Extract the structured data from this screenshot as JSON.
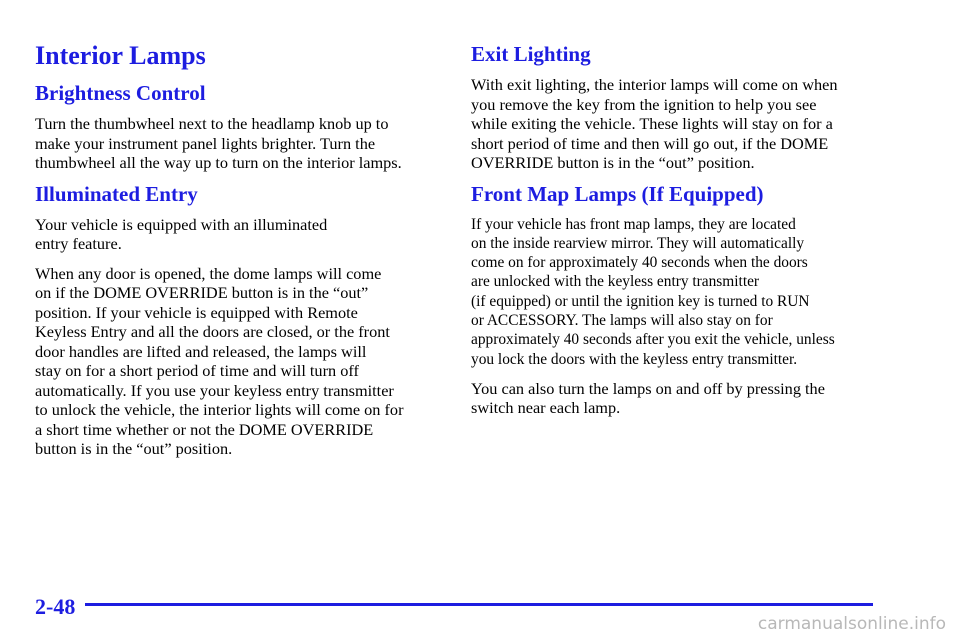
{
  "left": {
    "title": "Interior Lamps",
    "sections": [
      {
        "heading": "Brightness Control",
        "paragraphs": [
          [
            "Turn the thumbwheel next to the headlamp knob up to",
            "make your instrument panel lights brighter. Turn the",
            "thumbwheel all the way up to turn on the interior lamps."
          ]
        ]
      },
      {
        "heading": "Illuminated Entry",
        "paragraphs": [
          [
            "Your vehicle is equipped with an illuminated",
            "entry feature."
          ],
          [
            "When any door is opened, the dome lamps will come",
            "on if the DOME OVERRIDE button is in the “out”",
            "position. If your vehicle is equipped with Remote",
            "Keyless Entry and all the doors are closed, or the front",
            "door handles are lifted and released, the lamps will",
            "stay on for a short period of time and will turn off",
            "automatically. If you use your keyless entry transmitter",
            "to unlock the vehicle, the interior lights will come on for",
            "a short time whether or not the DOME OVERRIDE",
            "button is in the “out” position."
          ]
        ]
      }
    ]
  },
  "right": {
    "sections": [
      {
        "heading": "Exit Lighting",
        "paragraphs": [
          [
            "With exit lighting, the interior lamps will come on when",
            "you remove the key from the ignition to help you see",
            "while exiting the vehicle. These lights will stay on for a",
            "short period of time and then will go out, if the DOME",
            "OVERRIDE button is in the “out” position."
          ]
        ]
      },
      {
        "heading": "Front Map Lamps (If Equipped)",
        "paragraphs": [
          [
            "If your vehicle has front map lamps, they are located",
            "on the inside rearview mirror. They will automatically",
            "come on for approximately 40 seconds when the doors",
            "are unlocked with the keyless entry transmitter",
            "(if equipped) or until the ignition key is turned to RUN",
            "or ACCESSORY. The lamps will also stay on for",
            "approximately 40 seconds after you exit the vehicle, unless",
            "you lock the doors with the keyless entry transmitter."
          ],
          [
            "You can also turn the lamps on and off by pressing the",
            "switch near each lamp."
          ]
        ]
      }
    ]
  },
  "footer": {
    "page_number": "2-48",
    "watermark": "carmanualsonline.info"
  }
}
